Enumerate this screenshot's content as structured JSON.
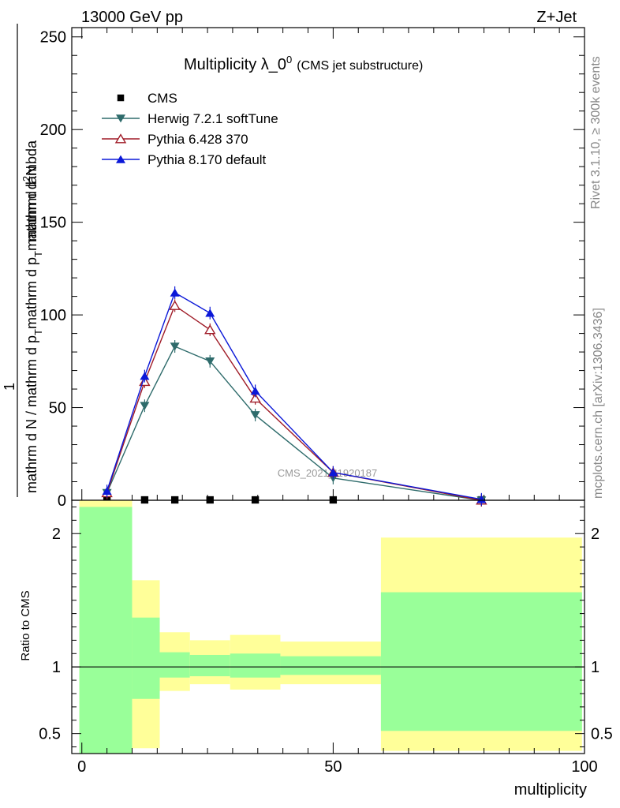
{
  "header": {
    "energy_label": "13000 GeV pp",
    "process_label": "Z+Jet"
  },
  "side_labels": {
    "rivet": "Rivet 3.1.10, ≥ 300k events",
    "mcplots": "mcplots.cern.ch [arXiv:1306.3436]"
  },
  "colors": {
    "cms": "#000000",
    "herwig": "#2e6b6b",
    "pythia6": "#a01c28",
    "pythia8": "#0b18d8",
    "band_inner": "#99ff99",
    "band_outer": "#ffff99"
  },
  "chart_data": [
    {
      "type": "line",
      "title": "Multiplicity λ_0",
      "title_sup": "0",
      "subtitle": "(CMS jet substructure)",
      "watermark": "CMS_2021_I1920187",
      "ylabel": {
        "numerator": "mathrm d",
        "numerator_sup": "2",
        "numerator_end": "N",
        "frac_num": "1",
        "frac_den": "mathrm d N / mathrm d p",
        "frac_den_sub": "T",
        "den_rest": "mathrm d p",
        "den_rest_sub": "T",
        "den_end": "mathrm d lambda"
      },
      "xlim": [
        -2,
        100
      ],
      "ylim": [
        0,
        255
      ],
      "yticks": [
        0,
        50,
        100,
        150,
        200,
        250
      ],
      "ytick_labels": [
        "0",
        "50",
        "100",
        "150",
        "200",
        "250"
      ],
      "x_bins": [
        5,
        12.5,
        18.5,
        25.5,
        34.5,
        50,
        79.5
      ],
      "series": [
        {
          "name": "CMS",
          "key": "cms",
          "marker": "square",
          "values": [
            0.2,
            0.2,
            0.2,
            0.2,
            0.2,
            0.2,
            0.2
          ]
        },
        {
          "name": "Herwig 7.2.1 softTune",
          "key": "herwig",
          "marker": "triangle-down",
          "values": [
            4,
            51,
            83,
            75,
            46,
            12,
            0
          ]
        },
        {
          "name": "Pythia 6.428 370",
          "key": "pythia6",
          "marker": "triangle-up-open",
          "values": [
            4,
            64,
            105,
            92,
            55,
            15,
            0
          ]
        },
        {
          "name": "Pythia 8.170 default",
          "key": "pythia8",
          "marker": "triangle-up",
          "values": [
            5,
            67,
            112,
            101,
            59,
            15,
            0.5
          ]
        }
      ]
    },
    {
      "type": "area",
      "ylabel": "Ratio to CMS",
      "xlabel": "multiplicity",
      "xlim": [
        -2,
        100
      ],
      "ylim": [
        0.35,
        2.25
      ],
      "xticks": [
        0,
        50,
        100
      ],
      "xtick_labels": [
        "0",
        "50",
        "100"
      ],
      "yticks": [
        0.5,
        1,
        2
      ],
      "ytick_labels": [
        "0.5",
        "1",
        "2"
      ],
      "reference": 1,
      "bins": [
        {
          "x0": -0.5,
          "x1": 10,
          "inner_lo": 0.35,
          "inner_hi": 2.2,
          "outer_lo": 0.35,
          "outer_hi": 2.25
        },
        {
          "x0": 10,
          "x1": 15.5,
          "inner_lo": 0.76,
          "inner_hi": 1.37,
          "outer_lo": 0.39,
          "outer_hi": 1.65
        },
        {
          "x0": 15.5,
          "x1": 21.5,
          "inner_lo": 0.92,
          "inner_hi": 1.11,
          "outer_lo": 0.82,
          "outer_hi": 1.26
        },
        {
          "x0": 21.5,
          "x1": 29.5,
          "inner_lo": 0.93,
          "inner_hi": 1.09,
          "outer_lo": 0.87,
          "outer_hi": 1.2
        },
        {
          "x0": 29.5,
          "x1": 39.5,
          "inner_lo": 0.92,
          "inner_hi": 1.1,
          "outer_lo": 0.83,
          "outer_hi": 1.24
        },
        {
          "x0": 39.5,
          "x1": 59.5,
          "inner_lo": 0.94,
          "inner_hi": 1.08,
          "outer_lo": 0.87,
          "outer_hi": 1.19
        },
        {
          "x0": 59.5,
          "x1": 99.5,
          "inner_lo": 0.52,
          "inner_hi": 1.56,
          "outer_lo": 0.37,
          "outer_hi": 1.97
        }
      ]
    }
  ]
}
